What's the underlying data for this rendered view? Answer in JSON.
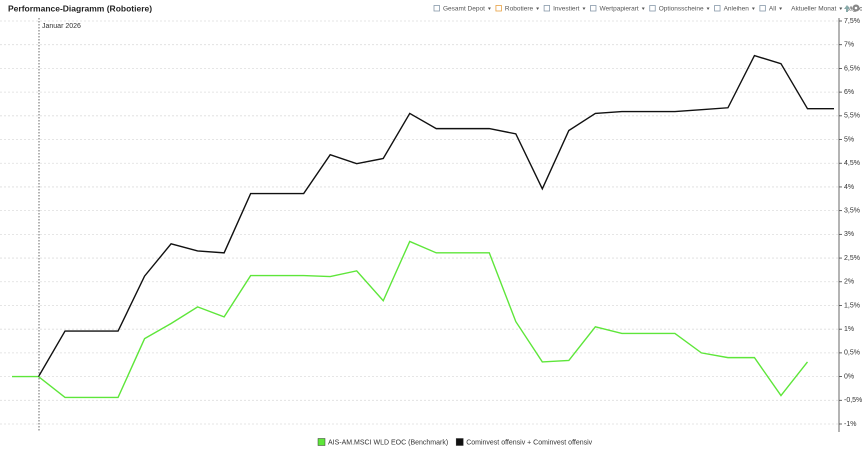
{
  "chart_data": {
    "type": "line",
    "title": "Performance-Diagramm (Robotiere)",
    "toolbar": [
      "Gesamt Depot",
      "Robotiere",
      "Investiert",
      "Wertpapierart",
      "Optionsscheine",
      "Anleihen",
      "All",
      "Aktueller Monat",
      "täglich"
    ],
    "annotation": "Januar 2026",
    "categories": [
      null,
      null,
      null,
      null,
      null,
      null,
      null,
      null,
      null,
      null,
      null,
      null,
      null,
      null,
      null,
      null,
      null,
      null,
      null,
      null,
      null,
      null,
      null,
      null,
      null,
      null,
      null,
      null,
      null,
      null,
      null,
      null
    ],
    "series": [
      {
        "name": "AIS-AM.MSCI WLD EOC (Benchmark)",
        "color": "#5ee63a",
        "values": [
          0,
          0,
          -0.44,
          -0.44,
          -0.44,
          0.8,
          1.12,
          1.47,
          1.26,
          2.13,
          2.13,
          2.13,
          2.11,
          2.23,
          1.6,
          2.85,
          2.61,
          2.61,
          2.61,
          1.16,
          0.31,
          0.34,
          1.05,
          0.91,
          0.91,
          0.91,
          0.5,
          0.4,
          0.4,
          -0.4,
          0.31,
          null
        ]
      },
      {
        "name": "Cominvest offensiv + Cominvest offensiv",
        "color": "#111111",
        "values": [
          null,
          0,
          0.96,
          0.96,
          0.96,
          2.12,
          2.8,
          2.65,
          2.61,
          3.86,
          3.86,
          3.86,
          4.68,
          4.49,
          4.6,
          5.55,
          5.23,
          5.23,
          5.23,
          5.12,
          3.96,
          5.19,
          5.55,
          5.59,
          5.59,
          5.59,
          5.63,
          5.67,
          6.77,
          6.6,
          5.65,
          5.65
        ]
      }
    ],
    "ylim": [
      -1,
      7.5
    ],
    "yticks": [
      {
        "value": 7.5,
        "label": "7,5%"
      },
      {
        "value": 7,
        "label": "7%"
      },
      {
        "value": 6.5,
        "label": "6,5%"
      },
      {
        "value": 6,
        "label": "6%"
      },
      {
        "value": 5.5,
        "label": "5,5%"
      },
      {
        "value": 5,
        "label": "5%"
      },
      {
        "value": 4.5,
        "label": "4,5%"
      },
      {
        "value": 4,
        "label": "4%"
      },
      {
        "value": 3.5,
        "label": "3,5%"
      },
      {
        "value": 3,
        "label": "3%"
      },
      {
        "value": 2.5,
        "label": "2,5%"
      },
      {
        "value": 2,
        "label": "2%"
      },
      {
        "value": 1.5,
        "label": "1,5%"
      },
      {
        "value": 1,
        "label": "1%"
      },
      {
        "value": 0.5,
        "label": "0,5%"
      },
      {
        "value": 0,
        "label": "0%"
      },
      {
        "value": -0.5,
        "label": "-0,5%"
      },
      {
        "value": -1,
        "label": "-1%"
      }
    ],
    "grid": true
  }
}
